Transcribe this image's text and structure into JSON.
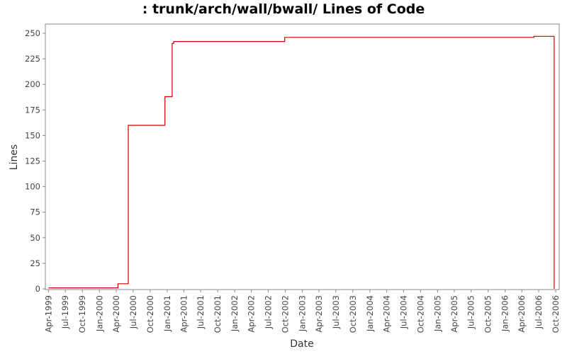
{
  "chart_data": {
    "type": "line",
    "title": ": trunk/arch/wall/bwall/ Lines of Code",
    "xlabel": "Date",
    "ylabel": "Lines",
    "x_ticks": [
      "Apr-1999",
      "Jul-1999",
      "Oct-1999",
      "Jan-2000",
      "Apr-2000",
      "Jul-2000",
      "Oct-2000",
      "Jan-2001",
      "Apr-2001",
      "Jul-2001",
      "Oct-2001",
      "Jan-2002",
      "Apr-2002",
      "Jul-2002",
      "Oct-2002",
      "Jan-2003",
      "Apr-2003",
      "Jul-2003",
      "Oct-2003",
      "Jan-2004",
      "Apr-2004",
      "Jul-2004",
      "Oct-2004",
      "Jan-2005",
      "Apr-2005",
      "Jul-2005",
      "Oct-2005",
      "Jan-2006",
      "Apr-2006",
      "Jul-2006",
      "Oct-2006"
    ],
    "y_ticks": [
      0,
      25,
      50,
      75,
      100,
      125,
      150,
      175,
      200,
      225,
      250
    ],
    "ylim": [
      0,
      260
    ],
    "xlim": [
      "1999-03-15",
      "2006-10-20"
    ],
    "grid": false,
    "line_color": "#cc0000",
    "series": [
      {
        "step": true,
        "points": [
          {
            "x": "1999-04-01",
            "y": 1
          },
          {
            "x": "2000-04-10",
            "y": 5
          },
          {
            "x": "2000-06-05",
            "y": 160
          },
          {
            "x": "2000-12-20",
            "y": 188
          },
          {
            "x": "2001-01-28",
            "y": 240
          },
          {
            "x": "2001-02-05",
            "y": 242
          },
          {
            "x": "2002-09-28",
            "y": 246
          },
          {
            "x": "2006-06-05",
            "y": 247
          },
          {
            "x": "2006-09-22",
            "y": 247
          },
          {
            "x": "2006-09-23",
            "y": 0
          }
        ]
      }
    ]
  }
}
